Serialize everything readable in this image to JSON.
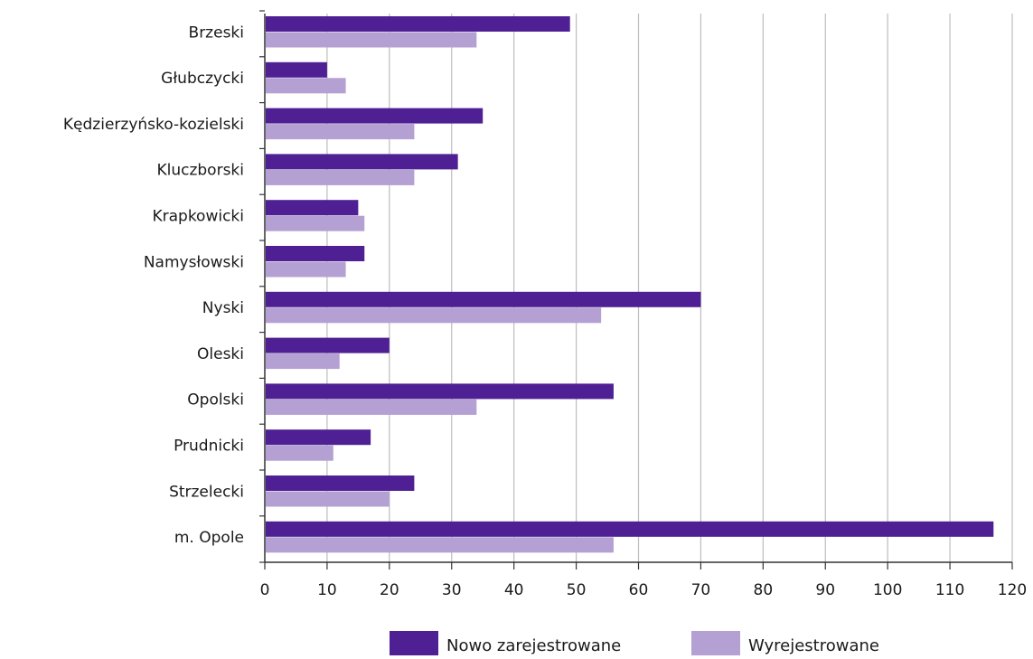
{
  "chart_data": {
    "type": "bar",
    "orientation": "horizontal",
    "categories": [
      "Brzeski",
      "Głubczycki",
      "Kędzierzyńsko-kozielski",
      "Kluczborski",
      "Krapkowicki",
      "Namysłowski",
      "Nyski",
      "Oleski",
      "Opolski",
      "Prudnicki",
      "Strzelecki",
      "m. Opole"
    ],
    "series": [
      {
        "name": "Nowo zarejestrowane",
        "color": "#4f2093",
        "values": [
          49,
          10,
          35,
          31,
          15,
          16,
          70,
          20,
          56,
          17,
          24,
          117
        ]
      },
      {
        "name": "Wyrejestrowane",
        "color": "#b4a0d3",
        "values": [
          34,
          13,
          24,
          24,
          16,
          13,
          54,
          12,
          34,
          11,
          20,
          56
        ]
      }
    ],
    "xlim": [
      0,
      120
    ],
    "xticks": [
      0,
      10,
      20,
      30,
      40,
      50,
      60,
      70,
      80,
      90,
      100,
      110,
      120
    ],
    "grid": "vertical",
    "legend": "bottom-center"
  }
}
